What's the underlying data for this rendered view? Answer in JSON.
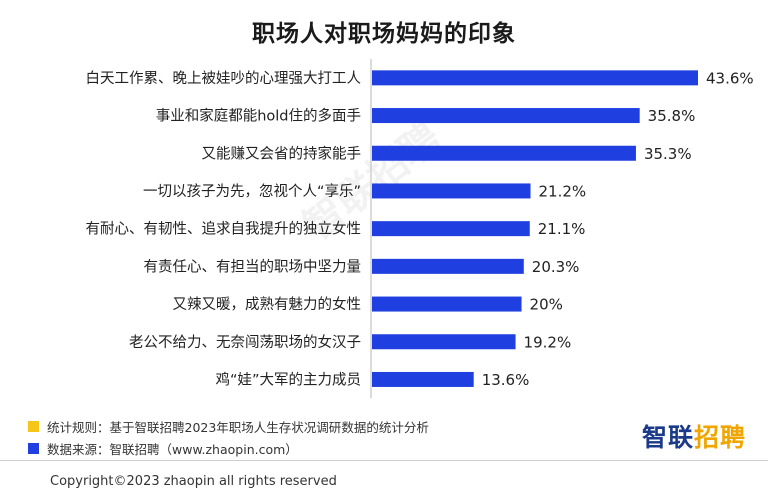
{
  "title": "职场人对职场妈妈的印象",
  "colors": {
    "bar": "#1f3fe0",
    "note_yellow": "#f5c518",
    "note_blue": "#1f3fe0",
    "brand_dark": "#1c3a8a",
    "brand_orange": "#f0a500",
    "axis": "#cfcfcf"
  },
  "chart_data": {
    "type": "bar",
    "orientation": "horizontal",
    "categories": [
      "白天工作累、晚上被娃吵的心理强大打工人",
      "事业和家庭都能hold住的多面手",
      "又能赚又会省的持家能手",
      "一切以孩子为先，忽视个人“享乐”",
      "有耐心、有韧性、追求自我提升的独立女性",
      "有责任心、有担当的职场中坚力量",
      "又辣又暖，成熟有魅力的女性",
      "老公不给力、无奈闯荡职场的女汉子",
      "鸡“娃”大军的主力成员"
    ],
    "values": [
      43.6,
      35.8,
      35.3,
      21.2,
      21.1,
      20.3,
      20.0,
      19.2,
      13.6
    ],
    "value_labels": [
      "43.6%",
      "35.8%",
      "35.3%",
      "21.2%",
      "21.1%",
      "20.3%",
      "20%",
      "19.2%",
      "13.6%"
    ],
    "xlim": [
      0,
      48
    ],
    "grid": false
  },
  "notes": [
    {
      "color": "#f5c518",
      "text": "统计规则：基于智联招聘2023年职场人生存状况调研数据的统计分析"
    },
    {
      "color": "#1f3fe0",
      "text": "数据来源：智联招聘（www.zhaopin.com）"
    }
  ],
  "brand": {
    "part1": "智联",
    "part2": "招聘"
  },
  "watermark": "智联招聘",
  "copyright": "Copyright©2023 zhaopin all rights reserved"
}
